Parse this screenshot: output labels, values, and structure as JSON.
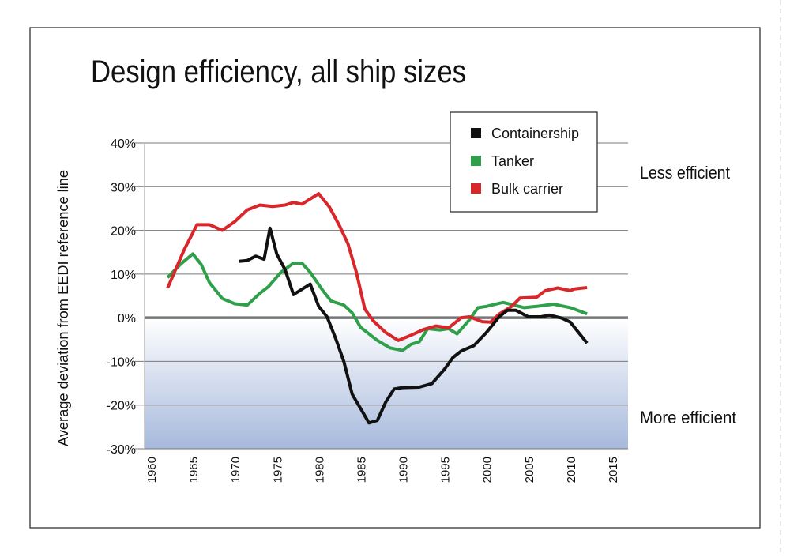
{
  "chart_data": {
    "type": "line",
    "title": "Design efficiency, all ship sizes",
    "ylabel": "Average deviation from EEDI reference line",
    "xlabel": "",
    "xlim": [
      1960,
      2015
    ],
    "ylim": [
      -30,
      40
    ],
    "x_ticks": [
      "1960",
      "1965",
      "1970",
      "1975",
      "1980",
      "1985",
      "1990",
      "1995",
      "2000",
      "2005",
      "2010",
      "2015"
    ],
    "y_ticks": [
      "40%",
      "30%",
      "20%",
      "10%",
      "0%",
      "-10%",
      "-20%",
      "-30%"
    ],
    "grid": true,
    "legend_position": "top-right",
    "annotations": {
      "upper": "Less efficient",
      "lower": "More efficient"
    },
    "colors": {
      "containership": "#111111",
      "tanker": "#2fa04a",
      "bulk": "#d9262b",
      "zero_line": "#777777",
      "shade_bottom": "#a6b9dc"
    },
    "series": [
      {
        "name": "Containership",
        "color": "#111111",
        "x": [
          1970.5,
          1971.5,
          1972.5,
          1973.5,
          1974.2,
          1975,
          1976,
          1977,
          1978,
          1979,
          1980,
          1981,
          1982,
          1983,
          1984,
          1985,
          1986,
          1987,
          1988,
          1989,
          1990,
          1992,
          1993.5,
          1995,
          1996,
          1997,
          1998.5,
          2000,
          2001.5,
          2002.5,
          2003.5,
          2005,
          2006.5,
          2007.5,
          2009,
          2010,
          2012
        ],
        "y": [
          12.9,
          13.1,
          14.1,
          13.4,
          20.5,
          14.6,
          11,
          5.3,
          6.5,
          7.7,
          2.6,
          0.2,
          -4.6,
          -10,
          -17.5,
          -20.8,
          -24.1,
          -23.5,
          -19.3,
          -16.3,
          -16,
          -15.9,
          -15.1,
          -11.8,
          -9.1,
          -7.6,
          -6.4,
          -3.4,
          0.2,
          1.7,
          1.7,
          0.2,
          0.2,
          0.6,
          -0.1,
          -1,
          -5.8
        ]
      },
      {
        "name": "Tanker",
        "color": "#2fa04a",
        "x": [
          1962,
          1963.5,
          1965,
          1966,
          1967,
          1968.5,
          1970,
          1971.5,
          1973,
          1974,
          1975.5,
          1977,
          1978,
          1979,
          1980.5,
          1981.5,
          1983,
          1984,
          1985,
          1987,
          1988.5,
          1990,
          1991,
          1992,
          1993,
          1994.5,
          1995.5,
          1996.5,
          1998,
          1999,
          2000,
          2001.5,
          2002,
          2004.5,
          2006,
          2008,
          2010,
          2012
        ],
        "y": [
          9.2,
          12.2,
          14.6,
          12.2,
          8,
          4.4,
          3.2,
          2.9,
          5.6,
          7.1,
          10.4,
          12.5,
          12.5,
          10.4,
          6.2,
          3.8,
          2.9,
          1.1,
          -2.2,
          -5.2,
          -6.9,
          -7.5,
          -6.1,
          -5.5,
          -2.5,
          -2.8,
          -2.5,
          -3.7,
          -0.4,
          2.3,
          2.6,
          3.3,
          3.5,
          2.3,
          2.6,
          3.1,
          2.3,
          0.9
        ]
      },
      {
        "name": "Bulk carrier",
        "color": "#d9262b",
        "x": [
          1962,
          1964,
          1965.5,
          1967,
          1968.5,
          1970,
          1971.5,
          1973,
          1974.5,
          1976,
          1977,
          1978,
          1980,
          1981.3,
          1982.5,
          1983.5,
          1984.5,
          1985.5,
          1986.5,
          1988,
          1989.5,
          1991,
          1992.5,
          1994,
          1995.5,
          1997,
          1998,
          1999.5,
          2000.5,
          2001.5,
          2003,
          2004,
          2006,
          2007,
          2008.5,
          2010,
          2010.5,
          2012
        ],
        "y": [
          6.8,
          15.7,
          21.3,
          21.3,
          20,
          22,
          24.7,
          25.8,
          25.5,
          25.8,
          26.4,
          26,
          28.4,
          25.3,
          21,
          16.9,
          10.4,
          2,
          -0.7,
          -3.4,
          -5.2,
          -4,
          -2.7,
          -1.9,
          -2.3,
          0,
          0.2,
          -0.9,
          -1,
          0.8,
          2.6,
          4.5,
          4.7,
          6.2,
          6.8,
          6.2,
          6.6,
          6.9
        ]
      }
    ]
  }
}
